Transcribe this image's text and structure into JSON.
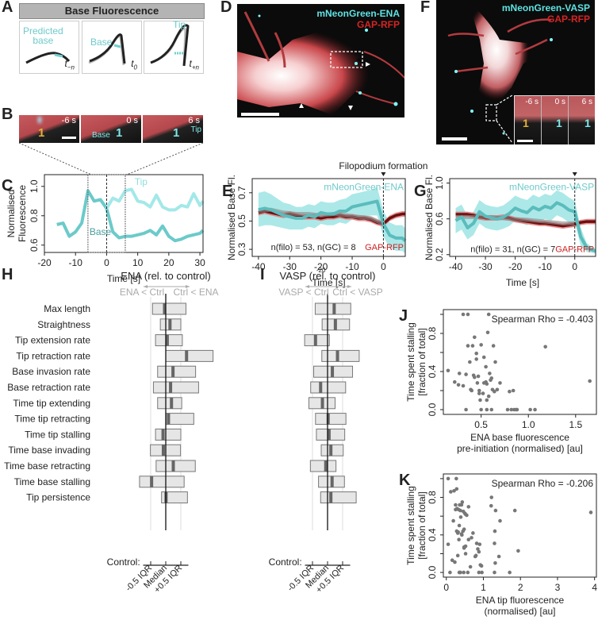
{
  "panels": {
    "A": {
      "label": "A",
      "header": "Base Fluorescence",
      "boxes": [
        {
          "annotation": "Predicted\nbase",
          "time": "t",
          "sub": "−n"
        },
        {
          "annotation": "Base",
          "time": "t",
          "sub": "0"
        },
        {
          "annotation": "Tip",
          "time": "t",
          "sub": "+n"
        }
      ]
    },
    "B": {
      "label": "B",
      "frames": [
        {
          "time": "-6 s",
          "marker": "1"
        },
        {
          "time": "0 s",
          "marker": "1",
          "annotation": "Base"
        },
        {
          "time": "6 s",
          "marker": "1",
          "annotation": "Tip"
        }
      ]
    },
    "D": {
      "label": "D",
      "channel1": "mNeonGreen-ENA",
      "channel2": "GAP-RFP"
    },
    "F": {
      "label": "F",
      "channel1": "mNeonGreen-VASP",
      "channel2": "GAP-RFP",
      "inset_times": [
        "-6 s",
        "0 s",
        "6 s"
      ],
      "inset_marker": "1"
    },
    "H": {
      "label": "H",
      "title": "ENA (rel. to control)",
      "left_hint": "ENA < Ctrl",
      "right_hint": "Ctrl < ENA",
      "control_label": "Control:",
      "tick_labels": [
        "-0.5 IQR",
        "Median",
        "+0.5 IQR"
      ]
    },
    "I": {
      "label": "I",
      "title": "VASP (rel. to control)",
      "left_hint": "VASP < Ctrl",
      "right_hint": "Ctrl < VASP",
      "control_label": "Control:",
      "tick_labels": [
        "-0.5 IQR",
        "Median",
        "+0.5 IQR"
      ]
    },
    "metrics": [
      "Max length",
      "Straightness",
      "Tip extension rate",
      "Tip retraction rate",
      "Base invasion rate",
      "Base retraction rate",
      "Time tip extending",
      "Time tip retracting",
      "Time tip stalling",
      "Time base invading",
      "Time base retracting",
      "Time base stalling",
      "Tip persistence"
    ]
  },
  "chart_data": [
    {
      "id": "C",
      "label": "C",
      "type": "line",
      "xlabel": "Time [s]",
      "ylabel": "Normalised\nFluorescence",
      "xlim": [
        -20,
        31
      ],
      "ylim": [
        0.55,
        1.08
      ],
      "xticks": [
        -20,
        -10,
        0,
        10,
        20,
        30
      ],
      "yticks": [
        0.6,
        0.8,
        1.0
      ],
      "window": [
        -6,
        6
      ],
      "marker_x": 0,
      "series": [
        {
          "name": "Base",
          "color": "#6ccaca",
          "x": [
            -16,
            -14,
            -12,
            -10,
            -8,
            -6,
            -4,
            -2,
            0,
            2,
            4,
            6,
            8,
            10,
            12,
            14,
            16,
            18,
            20,
            22,
            24,
            26,
            28,
            30,
            31
          ],
          "y": [
            0.74,
            0.75,
            0.66,
            0.69,
            0.75,
            0.97,
            0.9,
            0.91,
            0.85,
            0.69,
            0.65,
            0.66,
            0.66,
            0.67,
            0.68,
            0.7,
            0.67,
            0.73,
            0.66,
            0.63,
            0.64,
            0.66,
            0.67,
            0.68,
            0.7
          ]
        },
        {
          "name": "Tip",
          "color": "#a4e8e8",
          "x": [
            0,
            2,
            4,
            6,
            8,
            10,
            12,
            14,
            16,
            18,
            20,
            22,
            24,
            26,
            28,
            30,
            31
          ],
          "y": [
            0.85,
            0.92,
            0.9,
            0.97,
            0.98,
            0.9,
            0.89,
            0.86,
            0.94,
            0.86,
            0.84,
            0.84,
            0.87,
            0.86,
            0.95,
            0.87,
            0.9
          ]
        }
      ],
      "series_labels": [
        "Tip",
        "Base"
      ]
    },
    {
      "id": "E",
      "label": "E",
      "type": "line",
      "xlabel": "Time [s]",
      "ylabel": "Normalised Base Fl.",
      "xlim": [
        -42,
        7
      ],
      "ylim": [
        0.25,
        0.8
      ],
      "xticks": [
        -40,
        -30,
        -20,
        -10,
        0
      ],
      "yticks": [
        0.3,
        0.5,
        0.7
      ],
      "extra_tick_label": "-20",
      "marker_label": "Filopodium formation",
      "marker_x": 0,
      "annotation": "n(filo) = 53, n(GC) = 8",
      "series": [
        {
          "name": "mNeonGreen-ENA",
          "color": "#5bbcbc",
          "band_color": "#9de4e4",
          "x": [
            -40,
            -38,
            -36,
            -34,
            -32,
            -30,
            -28,
            -26,
            -24,
            -22,
            -20,
            -18,
            -16,
            -14,
            -12,
            -10,
            -8,
            -6,
            -4,
            -2,
            0,
            2,
            4,
            6,
            7
          ],
          "y": [
            0.58,
            0.59,
            0.58,
            0.56,
            0.54,
            0.53,
            0.52,
            0.52,
            0.54,
            0.53,
            0.56,
            0.55,
            0.55,
            0.57,
            0.57,
            0.6,
            0.61,
            0.62,
            0.63,
            0.64,
            0.48,
            0.4,
            0.38,
            0.38,
            0.36
          ],
          "band": [
            0.12,
            0.12,
            0.11,
            0.1,
            0.09,
            0.09,
            0.08,
            0.08,
            0.08,
            0.08,
            0.08,
            0.08,
            0.08,
            0.08,
            0.09,
            0.09,
            0.09,
            0.09,
            0.09,
            0.1,
            0.09,
            0.09,
            0.09,
            0.09,
            0.09
          ]
        },
        {
          "name": "GAP-RFP",
          "color": "#a31515",
          "band_color": "#e07a7a",
          "x": [
            -40,
            -38,
            -36,
            -34,
            -32,
            -30,
            -28,
            -26,
            -24,
            -22,
            -20,
            -18,
            -16,
            -14,
            -12,
            -10,
            -8,
            -6,
            -4,
            -2,
            0,
            2,
            4,
            6,
            7
          ],
          "y": [
            0.56,
            0.57,
            0.56,
            0.55,
            0.54,
            0.55,
            0.54,
            0.53,
            0.53,
            0.53,
            0.52,
            0.53,
            0.53,
            0.54,
            0.53,
            0.53,
            0.52,
            0.52,
            0.51,
            0.49,
            0.48,
            0.52,
            0.54,
            0.55,
            0.55
          ],
          "band": [
            0.02,
            0.02,
            0.02,
            0.02,
            0.02,
            0.02,
            0.02,
            0.02,
            0.02,
            0.02,
            0.02,
            0.02,
            0.02,
            0.02,
            0.02,
            0.02,
            0.02,
            0.02,
            0.02,
            0.02,
            0.02,
            0.02,
            0.02,
            0.02,
            0.02
          ]
        },
        {
          "name": "Control (grey)",
          "color": "#888888",
          "x": [
            -40,
            -36,
            -32,
            -28,
            -24,
            -20,
            -16,
            -12,
            -8,
            -4,
            0
          ],
          "y": [
            0.57,
            0.58,
            0.56,
            0.55,
            0.55,
            0.54,
            0.55,
            0.54,
            0.53,
            0.52,
            0.48
          ]
        }
      ]
    },
    {
      "id": "G",
      "label": "G",
      "type": "line",
      "xlabel": "Time [s]",
      "ylabel": "Normalised Base Fl.",
      "xlim": [
        -42,
        7
      ],
      "ylim": [
        0.18,
        1.05
      ],
      "xticks": [
        -40,
        -30,
        -20,
        -10,
        0
      ],
      "yticks": [
        0.2,
        0.6,
        1.0
      ],
      "marker_x": 0,
      "annotation": "n(filo) = 31, n(GC) = 7",
      "series": [
        {
          "name": "mNeonGreen-VASP",
          "color": "#5bbcbc",
          "band_color": "#9de4e4",
          "x": [
            -40,
            -38,
            -36,
            -34,
            -32,
            -30,
            -28,
            -26,
            -24,
            -22,
            -20,
            -18,
            -16,
            -14,
            -12,
            -10,
            -8,
            -6,
            -4,
            -2,
            0,
            2,
            4,
            6,
            7
          ],
          "y": [
            0.58,
            0.62,
            0.5,
            0.55,
            0.68,
            0.63,
            0.61,
            0.6,
            0.62,
            0.66,
            0.72,
            0.69,
            0.67,
            0.73,
            0.7,
            0.74,
            0.72,
            0.78,
            0.75,
            0.7,
            0.68,
            0.4,
            0.28,
            0.25,
            0.24
          ],
          "band": [
            0.14,
            0.14,
            0.13,
            0.13,
            0.13,
            0.13,
            0.13,
            0.13,
            0.13,
            0.14,
            0.14,
            0.14,
            0.14,
            0.14,
            0.14,
            0.14,
            0.14,
            0.14,
            0.14,
            0.14,
            0.12,
            0.1,
            0.05,
            0.03,
            0.03
          ]
        },
        {
          "name": "GAP-RFP",
          "color": "#a31515",
          "band_color": "#e07a7a",
          "x": [
            -40,
            -38,
            -36,
            -34,
            -32,
            -30,
            -28,
            -26,
            -24,
            -22,
            -20,
            -18,
            -16,
            -14,
            -12,
            -10,
            -8,
            -6,
            -4,
            -2,
            0,
            2,
            4,
            6,
            7
          ],
          "y": [
            0.65,
            0.65,
            0.65,
            0.64,
            0.62,
            0.61,
            0.61,
            0.61,
            0.62,
            0.61,
            0.59,
            0.58,
            0.57,
            0.56,
            0.55,
            0.55,
            0.54,
            0.53,
            0.52,
            0.53,
            0.54,
            0.56,
            0.57,
            0.57,
            0.57
          ],
          "band": [
            0.03,
            0.03,
            0.03,
            0.03,
            0.03,
            0.03,
            0.03,
            0.03,
            0.03,
            0.03,
            0.03,
            0.03,
            0.03,
            0.03,
            0.03,
            0.03,
            0.03,
            0.03,
            0.03,
            0.03,
            0.03,
            0.03,
            0.03,
            0.03,
            0.03
          ]
        },
        {
          "name": "Control (grey)",
          "color": "#888888",
          "x": [
            -40,
            -34,
            -28,
            -22,
            -16,
            -10,
            -4,
            0
          ],
          "y": [
            0.62,
            0.62,
            0.62,
            0.6,
            0.59,
            0.57,
            0.55,
            0.55
          ]
        }
      ]
    },
    {
      "id": "H",
      "type": "bar",
      "title": "ENA (rel. to control)",
      "categories": [
        "Max length",
        "Straightness",
        "Tip extension rate",
        "Tip retraction rate",
        "Base invasion rate",
        "Base retraction rate",
        "Time tip extending",
        "Time tip retracting",
        "Time tip stalling",
        "Time base invading",
        "Time base retracting",
        "Time base stalling",
        "Tip persistence"
      ],
      "unit": "control IQR (median = 0, ±0.5 IQR reference lines)",
      "lower": [
        -0.44,
        -0.18,
        -0.34,
        0.0,
        -0.27,
        -0.41,
        -0.27,
        0.01,
        -0.34,
        -0.51,
        -0.32,
        -0.87,
        -0.14
      ],
      "median": [
        -0.04,
        0.14,
        0.05,
        0.69,
        0.24,
        0.16,
        0.19,
        0.09,
        -0.09,
        -0.08,
        0.25,
        -0.47,
        0.01
      ],
      "upper": [
        0.67,
        0.5,
        0.55,
        1.57,
        0.99,
        1.09,
        0.53,
        0.93,
        0.5,
        0.49,
        0.98,
        0.61,
        0.72
      ]
    },
    {
      "id": "I",
      "type": "bar",
      "title": "VASP (rel. to control)",
      "categories": [
        "Max length",
        "Straightness",
        "Tip extension rate",
        "Tip retraction rate",
        "Base invasion rate",
        "Base retraction rate",
        "Time tip extending",
        "Time tip retracting",
        "Time tip stalling",
        "Time base invading",
        "Time base retracting",
        "Time base stalling",
        "Tip persistence"
      ],
      "unit": "control IQR (median = 0, ±0.5 IQR reference lines)",
      "lower": [
        -0.41,
        -0.18,
        -0.76,
        -0.19,
        -0.46,
        -0.56,
        -0.62,
        -0.4,
        -0.37,
        -0.21,
        -0.57,
        -0.3,
        -0.23
      ],
      "median": [
        0.22,
        0.26,
        -0.4,
        0.33,
        0.16,
        -0.23,
        -0.17,
        0.02,
        0.05,
        0.11,
        -0.06,
        0.15,
        0.11
      ],
      "upper": [
        0.77,
        0.73,
        0.06,
        1.05,
        0.83,
        0.6,
        0.25,
        0.61,
        0.57,
        0.52,
        0.28,
        0.56,
        0.95
      ]
    },
    {
      "id": "J",
      "label": "J",
      "type": "scatter",
      "xlabel": "ENA base fluorescence\npre-initiation (normalised) [au]",
      "ylabel": "Time spent stalling\n[fraction of total]",
      "annotation": "Spearman Rho = -0.403",
      "xlim": [
        0.1,
        1.72
      ],
      "ylim": [
        -0.05,
        1.05
      ],
      "xticks": [
        0.5,
        1.0,
        1.5
      ],
      "xtick_labels": [
        "0.5",
        "1.0",
        "1.5"
      ],
      "yticks": [
        0.0,
        0.4,
        0.8
      ],
      "x": [
        0.15,
        0.22,
        0.31,
        0.36,
        0.27,
        0.34,
        0.38,
        0.26,
        0.31,
        0.39,
        0.47,
        0.42,
        0.48,
        0.46,
        0.53,
        0.48,
        0.55,
        0.56,
        0.6,
        0.61,
        0.59,
        0.62,
        0.64,
        0.58,
        0.67,
        0.8,
        0.84,
        0.53,
        0.65,
        0.55,
        0.45,
        0.41,
        0.5,
        0.43,
        0.57,
        0.63,
        0.45,
        0.36,
        0.43,
        0.4,
        0.49,
        0.52,
        0.56,
        0.7,
        0.82,
        0.88,
        1.18,
        1.65,
        0.34,
        0.56,
        0.61,
        0.78,
        1.02,
        1.07,
        0.85,
        0.87,
        0.5,
        0.58
      ],
      "y": [
        0.41,
        0.29,
        1.0,
        1.0,
        0.38,
        0.37,
        0.5,
        0.26,
        0.25,
        0.21,
        0.35,
        0.36,
        0.2,
        0.28,
        0.28,
        0.17,
        0.29,
        0.27,
        0.31,
        0.33,
        0.38,
        0.21,
        0.19,
        0.14,
        0.21,
        0.19,
        0.2,
        0.55,
        0.5,
        0.45,
        0.59,
        0.67,
        0.68,
        0.76,
        0.81,
        0.67,
        0.53,
        0.67,
        0.34,
        0.2,
        0.1,
        0.17,
        0.1,
        0.28,
        0.0,
        0.0,
        0.66,
        0.3,
        0.0,
        0.0,
        0.0,
        0.0,
        0.0,
        0.0,
        0.0,
        0.0,
        0.0,
        1.0
      ],
      "point_color": "#777777"
    },
    {
      "id": "K",
      "label": "K",
      "type": "scatter",
      "xlabel": "ENA tip fluorescence\n(normalised)  [au]",
      "ylabel": "Time spent stalling\n[fraction of total]",
      "annotation": "Spearman Rho = -0.206",
      "xlim": [
        -0.08,
        4.05
      ],
      "ylim": [
        -0.05,
        1.05
      ],
      "xticks": [
        0,
        1,
        2,
        3,
        4
      ],
      "yticks": [
        0.0,
        0.4,
        0.8
      ],
      "x": [
        0.05,
        0.28,
        0.12,
        0.21,
        0.25,
        0.36,
        0.16,
        0.23,
        0.29,
        0.33,
        0.43,
        0.41,
        0.38,
        0.52,
        0.55,
        0.6,
        0.46,
        0.5,
        0.39,
        0.48,
        0.45,
        0.35,
        0.32,
        0.28,
        0.31,
        0.34,
        0.42,
        0.48,
        0.48,
        0.52,
        0.72,
        0.68,
        0.6,
        0.82,
        0.9,
        0.85,
        0.8,
        0.88,
        0.95,
        0.92,
        0.78,
        1.22,
        1.21,
        1.33,
        1.31,
        1.3,
        1.32,
        1.42,
        1.45,
        1.85,
        1.94,
        3.9,
        0.05,
        0.19,
        0.25,
        0.31,
        0.1,
        0.35,
        0.47,
        0.58,
        0.65,
        0.88,
        0.96,
        1.3,
        1.71,
        0.52,
        0.27,
        0.38,
        0.41
      ],
      "y": [
        0.3,
        0.89,
        0.86,
        0.87,
        0.72,
        0.72,
        0.13,
        0.11,
        0.68,
        0.67,
        0.75,
        0.72,
        0.66,
        0.62,
        0.61,
        0.7,
        0.65,
        0.63,
        0.59,
        0.46,
        0.44,
        0.5,
        0.43,
        0.44,
        0.42,
        0.35,
        0.4,
        0.27,
        0.26,
        0.28,
        0.42,
        0.37,
        0.35,
        0.31,
        0.3,
        0.25,
        0.18,
        0.22,
        0.07,
        0.08,
        0.17,
        0.8,
        0.71,
        0.66,
        0.44,
        0.31,
        0.1,
        0.17,
        0.55,
        0.66,
        0.23,
        0.64,
        1.0,
        0.55,
        0.67,
        0.18,
        0.0,
        0.0,
        0.0,
        0.0,
        0.06,
        0.0,
        0.0,
        0.0,
        0.0,
        0.2,
        1.0,
        0.0,
        0.41
      ],
      "point_color": "#777777"
    }
  ]
}
